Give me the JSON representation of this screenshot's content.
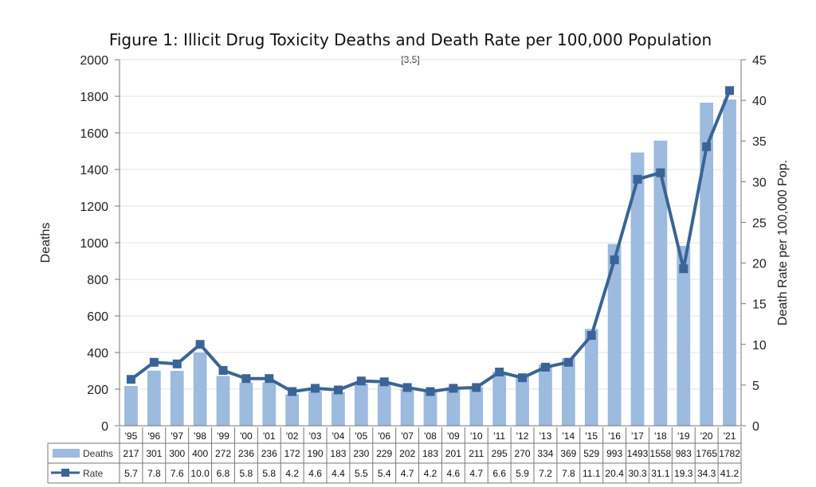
{
  "chart_data": {
    "type": "bar",
    "title": "Figure 1: Illicit Drug Toxicity Deaths and Death Rate per 100,000 Population",
    "subtitle": "[3,5]",
    "ylabel": "Deaths",
    "y2label": "Death Rate per 100,000 Pop.",
    "ylim": [
      0,
      2000
    ],
    "y2lim": [
      0,
      45
    ],
    "yticks": [
      0,
      200,
      400,
      600,
      800,
      1000,
      1200,
      1400,
      1600,
      1800,
      2000
    ],
    "y2ticks": [
      0,
      5,
      10,
      15,
      20,
      25,
      30,
      35,
      40,
      45
    ],
    "categories": [
      "'95",
      "'96",
      "'97",
      "'98",
      "'99",
      "'00",
      "'01",
      "'02",
      "'03",
      "'04",
      "'05",
      "'06",
      "'07",
      "'08",
      "'09",
      "'10",
      "'11",
      "'12",
      "'13",
      "'14",
      "'15",
      "'16",
      "'17",
      "'18",
      "'19",
      "'20",
      "'21"
    ],
    "series": [
      {
        "name": "Deaths",
        "type": "bar",
        "axis": "left",
        "values": [
          217,
          301,
          300,
          400,
          272,
          236,
          236,
          172,
          190,
          183,
          230,
          229,
          202,
          183,
          201,
          211,
          295,
          270,
          334,
          369,
          529,
          993,
          1493,
          1558,
          983,
          1765,
          1782
        ]
      },
      {
        "name": "Rate",
        "type": "line",
        "axis": "right",
        "values": [
          "5.7",
          "7.8",
          "7.6",
          "10.0",
          "6.8",
          "5.8",
          "5.8",
          "4.2",
          "4.6",
          "4.4",
          "5.5",
          "5.4",
          "4.7",
          "4.2",
          "4.6",
          "4.7",
          "6.6",
          "5.9",
          "7.2",
          "7.8",
          "11.1",
          "20.4",
          "30.3",
          "31.1",
          "19.3",
          "34.3",
          "41.2"
        ]
      }
    ],
    "data_table": true,
    "grid": true,
    "colors": {
      "bar": "#9dbadf",
      "line": "#3a6496",
      "grid": "#e3e3e3",
      "axis": "#777777"
    }
  }
}
